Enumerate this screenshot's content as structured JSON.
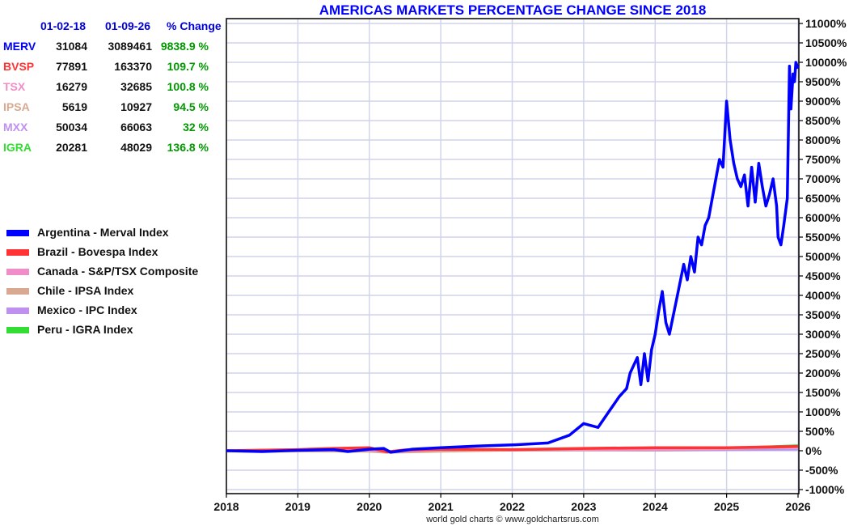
{
  "chart_data": {
    "type": "line",
    "title": "AMERICAS MARKETS PERCENTAGE CHANGE SINCE 2018",
    "xlabel": "",
    "ylabel": "",
    "xlim": [
      2018,
      2026
    ],
    "ylim": [
      -1000,
      11000
    ],
    "grid": true,
    "x_ticks": [
      "2018",
      "2019",
      "2020",
      "2021",
      "2022",
      "2023",
      "2024",
      "2025",
      "2026"
    ],
    "y_ticks": [
      "11000%",
      "10500%",
      "10000%",
      "9500%",
      "9000%",
      "8500%",
      "8000%",
      "7500%",
      "7000%",
      "6500%",
      "6000%",
      "5500%",
      "5000%",
      "4500%",
      "4000%",
      "3500%",
      "3000%",
      "2500%",
      "2000%",
      "1500%",
      "1000%",
      "500%",
      "0%",
      "-500%",
      "-1000%"
    ],
    "y_tick_values": [
      11000,
      10500,
      10000,
      9500,
      9000,
      8500,
      8000,
      7500,
      7000,
      6500,
      6000,
      5500,
      5000,
      4500,
      4000,
      3500,
      3000,
      2500,
      2000,
      1500,
      1000,
      500,
      0,
      -500,
      -1000
    ],
    "legend_position": "left",
    "series": [
      {
        "name": "Argentina - Merval Index",
        "color": "#0000ff",
        "x": [
          2018.0,
          2018.5,
          2019.0,
          2019.5,
          2019.7,
          2020.0,
          2020.2,
          2020.3,
          2020.6,
          2021.0,
          2021.5,
          2022.0,
          2022.3,
          2022.5,
          2022.8,
          2023.0,
          2023.1,
          2023.2,
          2023.35,
          2023.5,
          2023.6,
          2023.65,
          2023.75,
          2023.8,
          2023.85,
          2023.9,
          2023.95,
          2024.0,
          2024.05,
          2024.1,
          2024.15,
          2024.2,
          2024.3,
          2024.4,
          2024.45,
          2024.5,
          2024.55,
          2024.6,
          2024.65,
          2024.7,
          2024.75,
          2024.8,
          2024.9,
          2024.95,
          2025.0,
          2025.05,
          2025.1,
          2025.15,
          2025.2,
          2025.25,
          2025.3,
          2025.35,
          2025.4,
          2025.45,
          2025.5,
          2025.55,
          2025.6,
          2025.65,
          2025.7,
          2025.72,
          2025.76,
          2025.8,
          2025.85,
          2025.88,
          2025.9,
          2025.93,
          2025.95,
          2025.97,
          2026.0
        ],
        "values": [
          0,
          -20,
          10,
          30,
          -20,
          40,
          60,
          -40,
          40,
          80,
          120,
          150,
          180,
          200,
          400,
          700,
          650,
          600,
          1000,
          1400,
          1600,
          2000,
          2400,
          1700,
          2500,
          1800,
          2600,
          3000,
          3600,
          4100,
          3300,
          3000,
          3900,
          4800,
          4400,
          5000,
          4600,
          5500,
          5300,
          5800,
          6000,
          6500,
          7500,
          7300,
          9000,
          8000,
          7400,
          7000,
          6800,
          7100,
          6300,
          7300,
          6400,
          7400,
          6800,
          6300,
          6600,
          7000,
          6300,
          5500,
          5300,
          5800,
          6500,
          9900,
          8800,
          9700,
          9500,
          10000,
          9838.9
        ]
      },
      {
        "name": "Brazil - Bovespa Index",
        "color": "#ff3333",
        "x": [
          2018,
          2019,
          2019.5,
          2020,
          2020.25,
          2020.5,
          2021,
          2022,
          2023,
          2024,
          2025,
          2026
        ],
        "values": [
          0,
          30,
          60,
          80,
          -30,
          20,
          40,
          30,
          60,
          80,
          80,
          109.7
        ]
      },
      {
        "name": "Canada - S&P/TSX Composite",
        "color": "#f08cc8",
        "x": [
          2018,
          2019,
          2020,
          2020.25,
          2021,
          2022,
          2023,
          2024,
          2025,
          2026
        ],
        "values": [
          0,
          5,
          10,
          -30,
          20,
          30,
          25,
          35,
          60,
          100.8
        ]
      },
      {
        "name": "Chile - IPSA Index",
        "color": "#d8a890",
        "x": [
          2018,
          2019,
          2020,
          2020.25,
          2021,
          2022,
          2023,
          2024,
          2025,
          2026
        ],
        "values": [
          0,
          -10,
          -20,
          -50,
          -20,
          10,
          10,
          20,
          50,
          94.5
        ]
      },
      {
        "name": "Mexico - IPC Index",
        "color": "#c090f0",
        "x": [
          2018,
          2019,
          2020,
          2020.25,
          2021,
          2022,
          2023,
          2024,
          2025,
          2026
        ],
        "values": [
          0,
          -10,
          -15,
          -40,
          0,
          5,
          10,
          5,
          20,
          32
        ]
      },
      {
        "name": "Peru - IGRA Index",
        "color": "#33dd33",
        "x": [
          2018,
          2019,
          2020,
          2020.25,
          2021,
          2022,
          2023,
          2024,
          2025,
          2026
        ],
        "values": [
          0,
          5,
          0,
          -40,
          10,
          20,
          30,
          40,
          70,
          136.8
        ]
      }
    ]
  },
  "table": {
    "headers": [
      "01-02-18",
      "01-09-26",
      "% Change"
    ],
    "rows": [
      {
        "ticker": "MERV",
        "color": "#0000ff",
        "start": "31084",
        "end": "3089461",
        "change": "9838.9 %"
      },
      {
        "ticker": "BVSP",
        "color": "#ff3333",
        "start": "77891",
        "end": "163370",
        "change": "109.7 %"
      },
      {
        "ticker": "TSX",
        "color": "#f08cc8",
        "start": "16279",
        "end": "32685",
        "change": "100.8 %"
      },
      {
        "ticker": "IPSA",
        "color": "#d8a890",
        "start": "5619",
        "end": "10927",
        "change": "94.5 %"
      },
      {
        "ticker": "MXX",
        "color": "#c090f0",
        "start": "50034",
        "end": "66063",
        "change": "32 %"
      },
      {
        "ticker": "IGRA",
        "color": "#33dd33",
        "start": "20281",
        "end": "48029",
        "change": "136.8 %"
      }
    ],
    "change_color": "#009900"
  },
  "footer": "world gold charts © www.goldchartsrus.com"
}
